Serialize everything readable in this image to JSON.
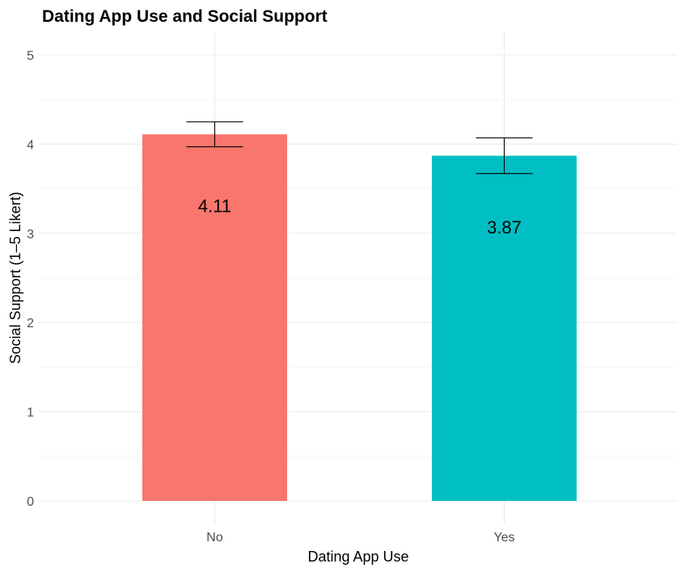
{
  "chart_data": {
    "type": "bar",
    "title": "Dating App Use and Social Support",
    "xlabel": "Dating App Use",
    "ylabel": "Social Support (1–5 Likert)",
    "categories": [
      "No",
      "Yes"
    ],
    "values": [
      4.11,
      3.87
    ],
    "value_labels": [
      "4.11",
      "3.87"
    ],
    "error_low": [
      3.97,
      3.67
    ],
    "error_high": [
      4.25,
      4.07
    ],
    "colors": [
      "#F8766D",
      "#00BFC4"
    ],
    "ylim": [
      0,
      5
    ],
    "yticks": [
      "0",
      "1",
      "2",
      "3",
      "4",
      "5"
    ],
    "grid": true,
    "legend": "none"
  }
}
